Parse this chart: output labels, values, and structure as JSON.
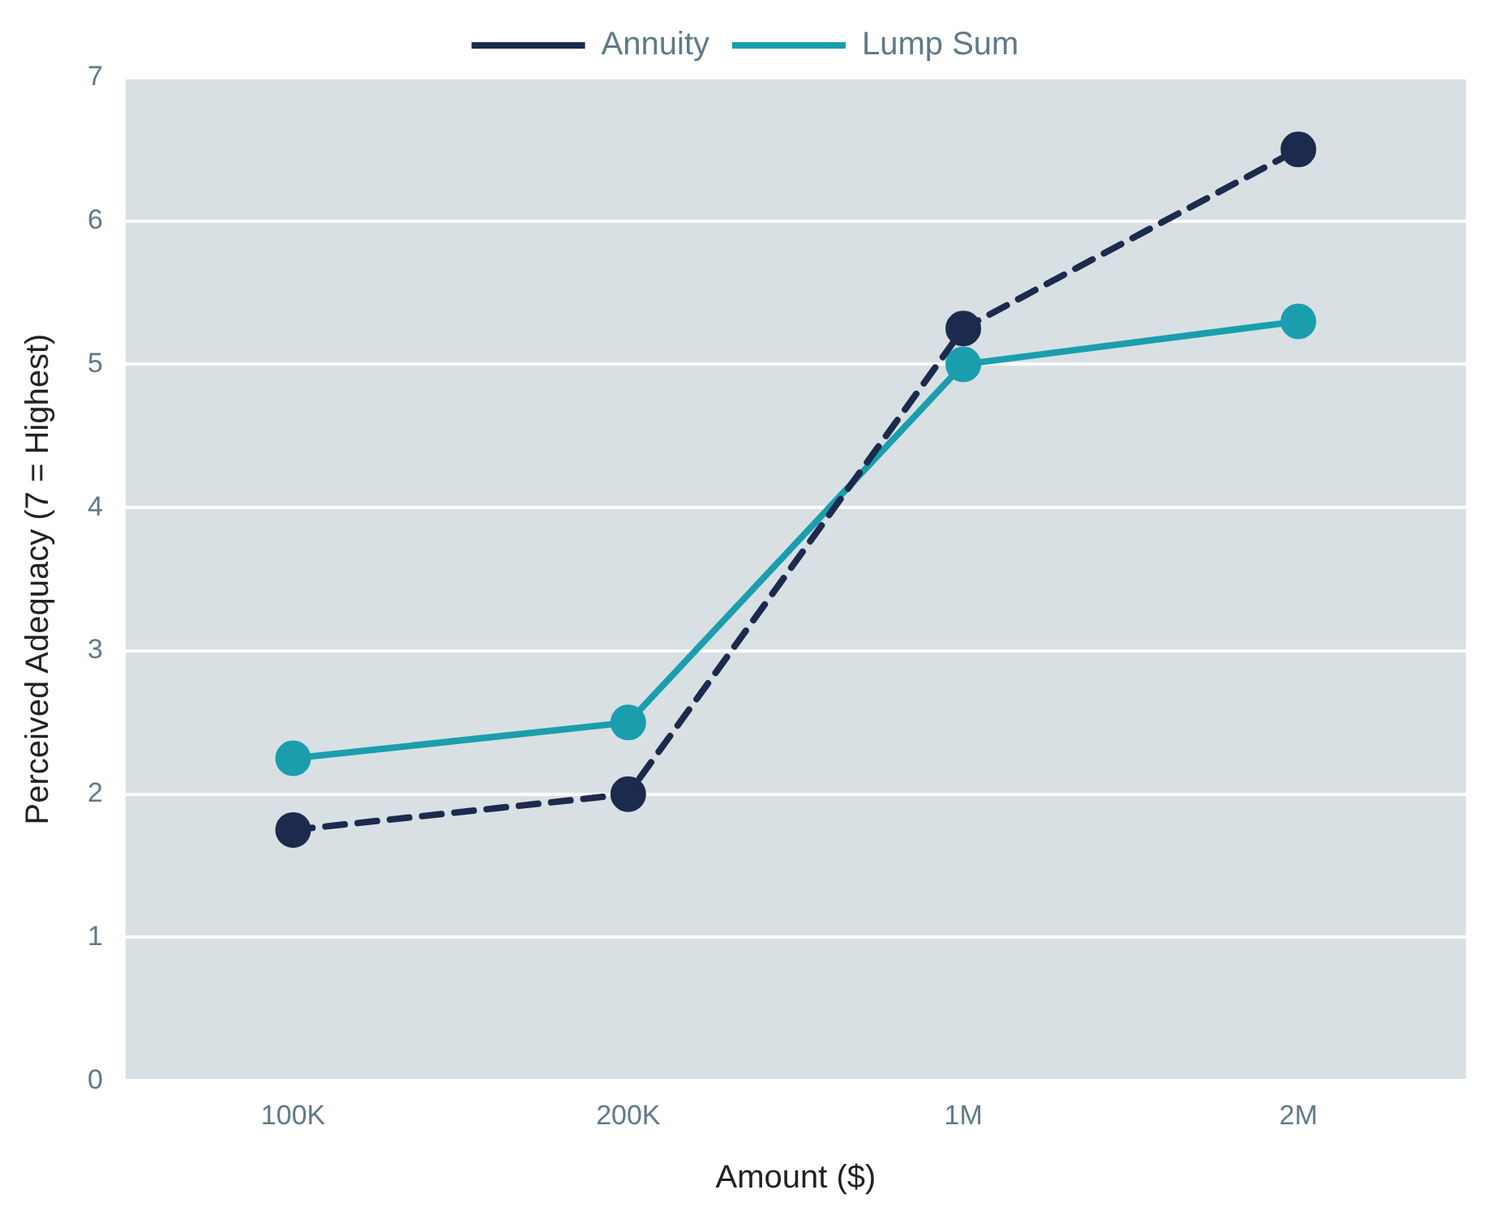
{
  "chart_data": {
    "type": "line",
    "xlabel": "Amount ($)",
    "ylabel": "Perceived Adequacy (7 = Highest)",
    "categories": [
      "100K",
      "200K",
      "1M",
      "2M"
    ],
    "series": [
      {
        "name": "Annuity",
        "color": "#1c2a4d",
        "values": [
          1.75,
          2.0,
          5.25,
          6.5
        ],
        "line_style": "dashed"
      },
      {
        "name": "Lump Sum",
        "color": "#1a9ead",
        "values": [
          2.25,
          2.5,
          5.0,
          5.3
        ],
        "line_style": "solid"
      }
    ],
    "ylim": [
      0,
      7
    ],
    "yticks": [
      0,
      1,
      2,
      3,
      4,
      5,
      6,
      7
    ],
    "grid": "y",
    "legend": "top",
    "marker": "circle"
  }
}
